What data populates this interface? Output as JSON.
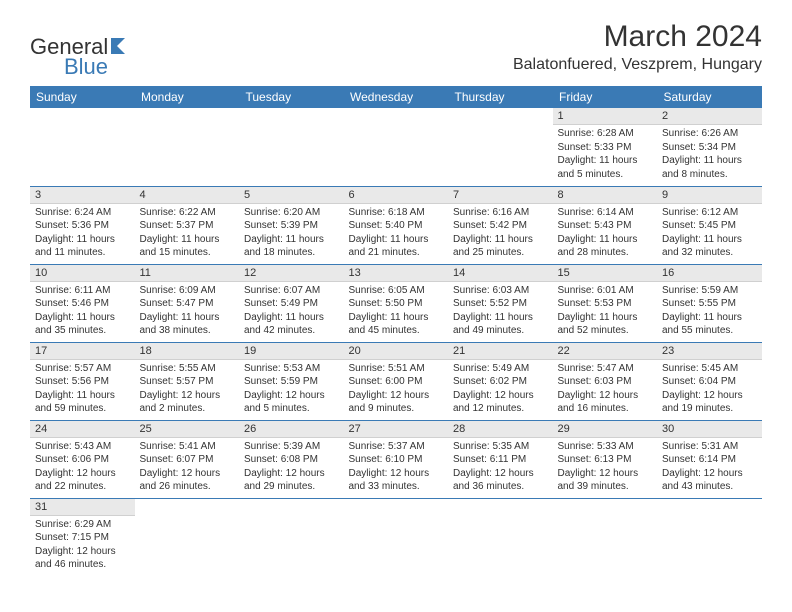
{
  "logo": {
    "general": "General",
    "blue": "Blue"
  },
  "title": "March 2024",
  "location": "Balatonfuered, Veszprem, Hungary",
  "colors": {
    "header_bg": "#3a7ab5",
    "header_text": "#ffffff",
    "daynum_bg": "#e9e9e9",
    "border": "#3a7ab5",
    "text": "#333333",
    "logo_blue": "#3a7ab5"
  },
  "typography": {
    "title_size": 30,
    "location_size": 16,
    "header_size": 12,
    "daynum_size": 11,
    "content_size": 10
  },
  "layout": {
    "columns": 7,
    "rows": 6
  },
  "weekdays": [
    "Sunday",
    "Monday",
    "Tuesday",
    "Wednesday",
    "Thursday",
    "Friday",
    "Saturday"
  ],
  "days": [
    {
      "n": "",
      "sr": "",
      "ss": "",
      "dl": ""
    },
    {
      "n": "",
      "sr": "",
      "ss": "",
      "dl": ""
    },
    {
      "n": "",
      "sr": "",
      "ss": "",
      "dl": ""
    },
    {
      "n": "",
      "sr": "",
      "ss": "",
      "dl": ""
    },
    {
      "n": "",
      "sr": "",
      "ss": "",
      "dl": ""
    },
    {
      "n": "1",
      "sr": "Sunrise: 6:28 AM",
      "ss": "Sunset: 5:33 PM",
      "dl": "Daylight: 11 hours and 5 minutes."
    },
    {
      "n": "2",
      "sr": "Sunrise: 6:26 AM",
      "ss": "Sunset: 5:34 PM",
      "dl": "Daylight: 11 hours and 8 minutes."
    },
    {
      "n": "3",
      "sr": "Sunrise: 6:24 AM",
      "ss": "Sunset: 5:36 PM",
      "dl": "Daylight: 11 hours and 11 minutes."
    },
    {
      "n": "4",
      "sr": "Sunrise: 6:22 AM",
      "ss": "Sunset: 5:37 PM",
      "dl": "Daylight: 11 hours and 15 minutes."
    },
    {
      "n": "5",
      "sr": "Sunrise: 6:20 AM",
      "ss": "Sunset: 5:39 PM",
      "dl": "Daylight: 11 hours and 18 minutes."
    },
    {
      "n": "6",
      "sr": "Sunrise: 6:18 AM",
      "ss": "Sunset: 5:40 PM",
      "dl": "Daylight: 11 hours and 21 minutes."
    },
    {
      "n": "7",
      "sr": "Sunrise: 6:16 AM",
      "ss": "Sunset: 5:42 PM",
      "dl": "Daylight: 11 hours and 25 minutes."
    },
    {
      "n": "8",
      "sr": "Sunrise: 6:14 AM",
      "ss": "Sunset: 5:43 PM",
      "dl": "Daylight: 11 hours and 28 minutes."
    },
    {
      "n": "9",
      "sr": "Sunrise: 6:12 AM",
      "ss": "Sunset: 5:45 PM",
      "dl": "Daylight: 11 hours and 32 minutes."
    },
    {
      "n": "10",
      "sr": "Sunrise: 6:11 AM",
      "ss": "Sunset: 5:46 PM",
      "dl": "Daylight: 11 hours and 35 minutes."
    },
    {
      "n": "11",
      "sr": "Sunrise: 6:09 AM",
      "ss": "Sunset: 5:47 PM",
      "dl": "Daylight: 11 hours and 38 minutes."
    },
    {
      "n": "12",
      "sr": "Sunrise: 6:07 AM",
      "ss": "Sunset: 5:49 PM",
      "dl": "Daylight: 11 hours and 42 minutes."
    },
    {
      "n": "13",
      "sr": "Sunrise: 6:05 AM",
      "ss": "Sunset: 5:50 PM",
      "dl": "Daylight: 11 hours and 45 minutes."
    },
    {
      "n": "14",
      "sr": "Sunrise: 6:03 AM",
      "ss": "Sunset: 5:52 PM",
      "dl": "Daylight: 11 hours and 49 minutes."
    },
    {
      "n": "15",
      "sr": "Sunrise: 6:01 AM",
      "ss": "Sunset: 5:53 PM",
      "dl": "Daylight: 11 hours and 52 minutes."
    },
    {
      "n": "16",
      "sr": "Sunrise: 5:59 AM",
      "ss": "Sunset: 5:55 PM",
      "dl": "Daylight: 11 hours and 55 minutes."
    },
    {
      "n": "17",
      "sr": "Sunrise: 5:57 AM",
      "ss": "Sunset: 5:56 PM",
      "dl": "Daylight: 11 hours and 59 minutes."
    },
    {
      "n": "18",
      "sr": "Sunrise: 5:55 AM",
      "ss": "Sunset: 5:57 PM",
      "dl": "Daylight: 12 hours and 2 minutes."
    },
    {
      "n": "19",
      "sr": "Sunrise: 5:53 AM",
      "ss": "Sunset: 5:59 PM",
      "dl": "Daylight: 12 hours and 5 minutes."
    },
    {
      "n": "20",
      "sr": "Sunrise: 5:51 AM",
      "ss": "Sunset: 6:00 PM",
      "dl": "Daylight: 12 hours and 9 minutes."
    },
    {
      "n": "21",
      "sr": "Sunrise: 5:49 AM",
      "ss": "Sunset: 6:02 PM",
      "dl": "Daylight: 12 hours and 12 minutes."
    },
    {
      "n": "22",
      "sr": "Sunrise: 5:47 AM",
      "ss": "Sunset: 6:03 PM",
      "dl": "Daylight: 12 hours and 16 minutes."
    },
    {
      "n": "23",
      "sr": "Sunrise: 5:45 AM",
      "ss": "Sunset: 6:04 PM",
      "dl": "Daylight: 12 hours and 19 minutes."
    },
    {
      "n": "24",
      "sr": "Sunrise: 5:43 AM",
      "ss": "Sunset: 6:06 PM",
      "dl": "Daylight: 12 hours and 22 minutes."
    },
    {
      "n": "25",
      "sr": "Sunrise: 5:41 AM",
      "ss": "Sunset: 6:07 PM",
      "dl": "Daylight: 12 hours and 26 minutes."
    },
    {
      "n": "26",
      "sr": "Sunrise: 5:39 AM",
      "ss": "Sunset: 6:08 PM",
      "dl": "Daylight: 12 hours and 29 minutes."
    },
    {
      "n": "27",
      "sr": "Sunrise: 5:37 AM",
      "ss": "Sunset: 6:10 PM",
      "dl": "Daylight: 12 hours and 33 minutes."
    },
    {
      "n": "28",
      "sr": "Sunrise: 5:35 AM",
      "ss": "Sunset: 6:11 PM",
      "dl": "Daylight: 12 hours and 36 minutes."
    },
    {
      "n": "29",
      "sr": "Sunrise: 5:33 AM",
      "ss": "Sunset: 6:13 PM",
      "dl": "Daylight: 12 hours and 39 minutes."
    },
    {
      "n": "30",
      "sr": "Sunrise: 5:31 AM",
      "ss": "Sunset: 6:14 PM",
      "dl": "Daylight: 12 hours and 43 minutes."
    },
    {
      "n": "31",
      "sr": "Sunrise: 6:29 AM",
      "ss": "Sunset: 7:15 PM",
      "dl": "Daylight: 12 hours and 46 minutes."
    },
    {
      "n": "",
      "sr": "",
      "ss": "",
      "dl": ""
    },
    {
      "n": "",
      "sr": "",
      "ss": "",
      "dl": ""
    },
    {
      "n": "",
      "sr": "",
      "ss": "",
      "dl": ""
    },
    {
      "n": "",
      "sr": "",
      "ss": "",
      "dl": ""
    },
    {
      "n": "",
      "sr": "",
      "ss": "",
      "dl": ""
    },
    {
      "n": "",
      "sr": "",
      "ss": "",
      "dl": ""
    }
  ]
}
